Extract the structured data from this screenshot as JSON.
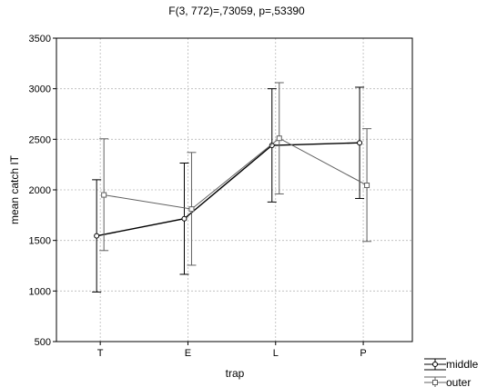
{
  "chart_data": {
    "type": "line",
    "title": "F(3, 772)=,73059, p=,53390",
    "xlabel": "trap",
    "ylabel": "mean catch IT",
    "categories": [
      "T",
      "E",
      "L",
      "P"
    ],
    "ylim": [
      500,
      3500
    ],
    "yticks": [
      "500",
      "1000",
      "1500",
      "2000",
      "2500",
      "3000",
      "3500"
    ],
    "grid": true,
    "legend_position": "bottom-right",
    "series": [
      {
        "name": "middle",
        "marker": "circle",
        "color": "#000000",
        "values": [
          1545,
          1715,
          2440,
          2465
        ],
        "lower": [
          990,
          1165,
          1880,
          1915
        ],
        "upper": [
          2100,
          2265,
          3000,
          3015
        ]
      },
      {
        "name": "outer",
        "marker": "square",
        "color": "#606060",
        "values": [
          1950,
          1810,
          2510,
          2045
        ],
        "lower": [
          1400,
          1255,
          1960,
          1490
        ],
        "upper": [
          2505,
          2370,
          3060,
          2605
        ]
      }
    ]
  }
}
